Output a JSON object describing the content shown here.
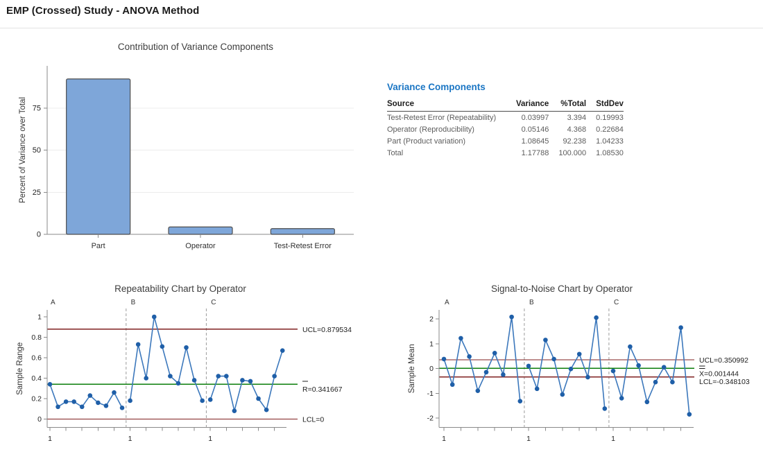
{
  "page": {
    "title": "EMP (Crossed) Study - ANOVA Method"
  },
  "variance_table": {
    "title": "Variance Components",
    "columns": [
      "Source",
      "Variance",
      "%Total",
      "StdDev"
    ],
    "rows": [
      [
        "Test-Retest Error (Repeatability)",
        "0.03997",
        "3.394",
        "0.19993"
      ],
      [
        "Operator (Reproducibility)",
        "0.05146",
        "4.368",
        "0.22684"
      ],
      [
        "Part (Product variation)",
        "1.08645",
        "92.238",
        "1.04233"
      ],
      [
        "Total",
        "1.17788",
        "100.000",
        "1.08530"
      ]
    ]
  },
  "colors": {
    "accent_heading": "#1b76c4",
    "bar_fill": "#7ea6d9",
    "bar_stroke": "#4d4d4d",
    "series_line": "#3c78bc",
    "marker": "#1f5fa8",
    "control_limit": "#7f1f1f",
    "center_line": "#0a7d0a",
    "grid": "#ececec",
    "axis": "#8a8a8a",
    "separator": "#9b9b9b",
    "title_text": "#3d3d3d",
    "tick_text": "#222222"
  },
  "chart_data": [
    {
      "id": "contribution",
      "type": "bar",
      "title": "Contribution of Variance Components",
      "xlabel": "",
      "ylabel": "Percent of Variance over Total",
      "categories": [
        "Part",
        "Operator",
        "Test-Retest Error"
      ],
      "values": [
        92.238,
        4.368,
        3.394
      ],
      "ylim": [
        0,
        100
      ],
      "yticks": [
        0,
        25,
        50,
        75
      ],
      "grid": true
    },
    {
      "id": "repeatability",
      "type": "line",
      "title": "Repeatability Chart by Operator",
      "ylabel": "Sample Range",
      "ylim": [
        -0.09,
        1.08
      ],
      "yticks": [
        0,
        0.2,
        0.4,
        0.6,
        0.8,
        1
      ],
      "ytick_labels": [
        "0",
        "0.2",
        "0.4",
        "0.6",
        "0.8",
        "1"
      ],
      "xtick_label": "1",
      "groups": [
        {
          "name": "A",
          "values": [
            0.34,
            0.12,
            0.17,
            0.17,
            0.12,
            0.23,
            0.16,
            0.13,
            0.26,
            0.11
          ]
        },
        {
          "name": "B",
          "values": [
            0.18,
            0.73,
            0.4,
            1.0,
            0.71,
            0.42,
            0.35,
            0.7,
            0.38,
            0.18
          ]
        },
        {
          "name": "C",
          "values": [
            0.19,
            0.42,
            0.42,
            0.08,
            0.38,
            0.37,
            0.2,
            0.09,
            0.42,
            0.67
          ]
        }
      ],
      "control_lines": [
        {
          "label": "UCL=0.879534",
          "value": 0.879534,
          "role": "ucl",
          "overbar": "none"
        },
        {
          "label": "R=0.341667",
          "value": 0.341667,
          "role": "center",
          "overbar": "single"
        },
        {
          "label": "LCL=0",
          "value": 0,
          "role": "lcl",
          "overbar": "none"
        }
      ],
      "legend_position": "right-of-plot"
    },
    {
      "id": "s2n",
      "type": "line",
      "title": "Signal-to-Noise Chart by Operator",
      "ylabel": "Sample Mean",
      "ylim": [
        -2.4,
        2.4
      ],
      "yticks": [
        -2,
        -1,
        0,
        1,
        2
      ],
      "ytick_labels": [
        "-2",
        "-1",
        "0",
        "1",
        "2"
      ],
      "xtick_label": "1",
      "groups": [
        {
          "name": "A",
          "values": [
            0.38,
            -0.65,
            1.22,
            0.48,
            -0.9,
            -0.15,
            0.62,
            -0.25,
            2.08,
            -1.32
          ]
        },
        {
          "name": "B",
          "values": [
            0.1,
            -0.82,
            1.15,
            0.38,
            -1.05,
            -0.02,
            0.58,
            -0.35,
            2.05,
            -1.62
          ]
        },
        {
          "name": "C",
          "values": [
            -0.1,
            -1.2,
            0.88,
            0.12,
            -1.35,
            -0.55,
            0.05,
            -0.55,
            1.65,
            -1.85
          ]
        }
      ],
      "control_lines": [
        {
          "label": "UCL=0.350992",
          "value": 0.350992,
          "role": "ucl",
          "overbar": "none"
        },
        {
          "label": "X=0.001444",
          "value": 0.001444,
          "role": "center",
          "overbar": "double"
        },
        {
          "label": "LCL=-0.348103",
          "value": -0.348103,
          "role": "lcl",
          "overbar": "none"
        }
      ],
      "legend_position": "right-of-plot"
    }
  ]
}
